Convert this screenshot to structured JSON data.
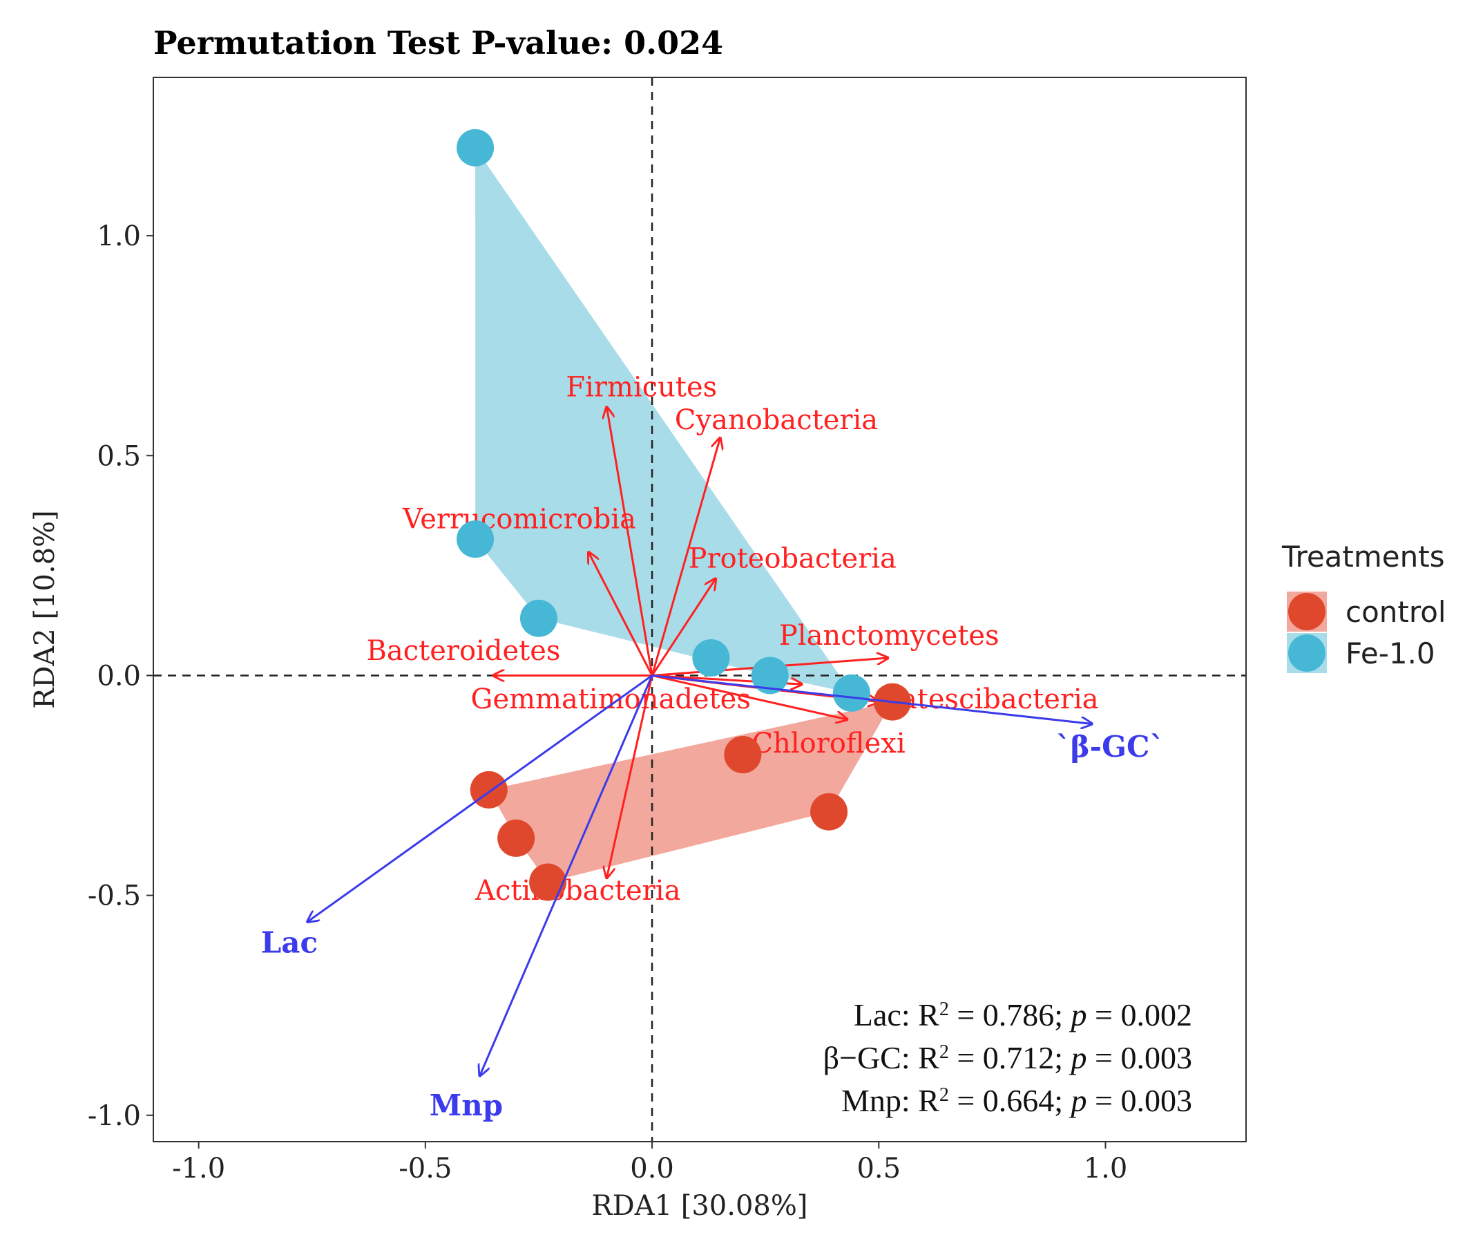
{
  "chart_data": {
    "type": "scatter",
    "subtype": "RDA biplot",
    "title": "Permutation Test P-value: 0.024",
    "xlabel": "RDA1 [30.08%]",
    "ylabel": "RDA2 [10.8%]",
    "xlim": [
      -1.1,
      1.31
    ],
    "ylim": [
      -1.06,
      1.36
    ],
    "x_ticks": [
      -1.0,
      -0.5,
      0.0,
      0.5,
      1.0
    ],
    "x_tick_labels": [
      "-1.0",
      "-0.5",
      "0.0",
      "0.5",
      "1.0"
    ],
    "y_ticks": [
      -1.0,
      -0.5,
      0.0,
      0.5,
      1.0
    ],
    "y_tick_labels": [
      "-1.0",
      "-0.5",
      "0.0",
      "0.5",
      "1.0"
    ],
    "grid": false,
    "legend": {
      "title": "Treatments",
      "position": "right",
      "entries": [
        {
          "label": "control",
          "color": "#E0482E"
        },
        {
          "label": "Fe-1.0",
          "color": "#46B8D6"
        }
      ]
    },
    "series": [
      {
        "name": "control",
        "color": "#E0482E",
        "hull_color": "#F2A89C",
        "points": [
          [
            -0.36,
            -0.26
          ],
          [
            -0.3,
            -0.37
          ],
          [
            -0.23,
            -0.47
          ],
          [
            0.39,
            -0.31
          ],
          [
            0.53,
            -0.06
          ],
          [
            0.2,
            -0.18
          ]
        ]
      },
      {
        "name": "Fe-1.0",
        "color": "#46B8D6",
        "hull_color": "#A9DCE9",
        "points": [
          [
            -0.39,
            1.2
          ],
          [
            -0.39,
            0.31
          ],
          [
            -0.25,
            0.13
          ],
          [
            0.13,
            0.04
          ],
          [
            0.26,
            0.0
          ],
          [
            0.44,
            -0.04
          ]
        ]
      }
    ],
    "species_arrows": {
      "color": "#FF2020",
      "items": [
        {
          "name": "Firmicutes",
          "x": -0.1,
          "y": 0.61
        },
        {
          "name": "Cyanobacteria",
          "x": 0.15,
          "y": 0.54
        },
        {
          "name": "Verrucomicrobia",
          "x": -0.14,
          "y": 0.28
        },
        {
          "name": "Proteobacteria",
          "x": 0.14,
          "y": 0.22
        },
        {
          "name": "Planctomycetes",
          "x": 0.52,
          "y": 0.04
        },
        {
          "name": "Bacteroidetes",
          "x": -0.35,
          "y": 0.0
        },
        {
          "name": "Gemmatimonadetes",
          "x": 0.33,
          "y": -0.02
        },
        {
          "name": "Patescibacteria",
          "x": 0.5,
          "y": -0.06
        },
        {
          "name": "Chloroflexi",
          "x": 0.43,
          "y": -0.1
        },
        {
          "name": "Actinobacteria",
          "x": -0.1,
          "y": -0.46
        }
      ]
    },
    "env_arrows": {
      "color": "#3B3BEB",
      "items": [
        {
          "name": "Lac",
          "x": -0.76,
          "y": -0.56
        },
        {
          "name": "`β-GC`",
          "x": 0.97,
          "y": -0.11
        },
        {
          "name": "Mnp",
          "x": -0.38,
          "y": -0.91
        }
      ]
    },
    "annotations": [
      {
        "var": "Lac",
        "r2": "0.786",
        "p": "0.002"
      },
      {
        "var": "β−GC",
        "r2": "0.712",
        "p": "0.003"
      },
      {
        "var": "Mnp",
        "r2": "0.664",
        "p": "0.003"
      }
    ]
  }
}
